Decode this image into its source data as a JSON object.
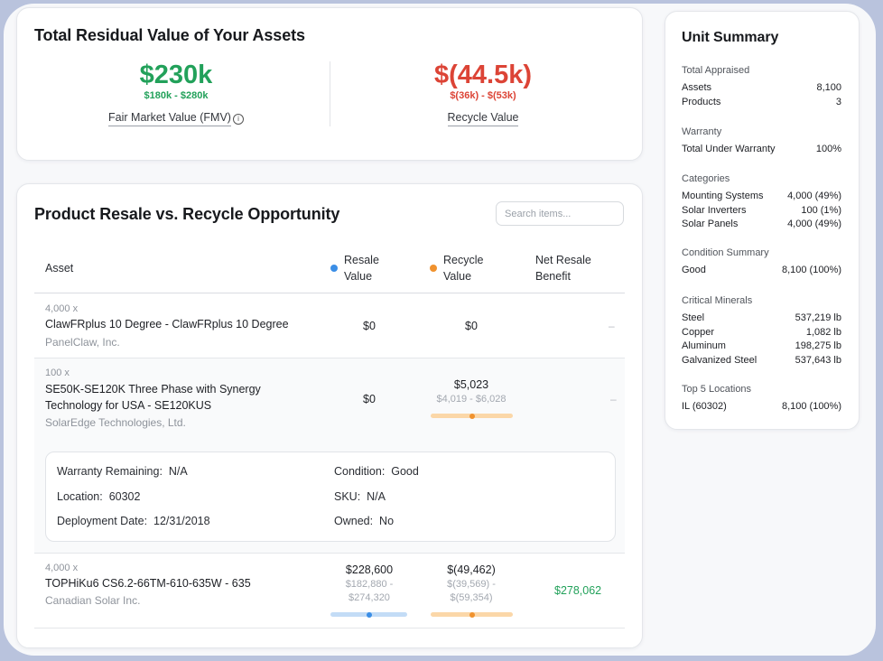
{
  "residual": {
    "title": "Total Residual Value of Your Assets",
    "fmv": {
      "value": "$230k",
      "range": "$180k - $280k",
      "label": "Fair Market Value (FMV)",
      "info_icon": "info-icon"
    },
    "recycle": {
      "value": "$(44.5k)",
      "range": "$(36k) - $(53k)",
      "label": "Recycle Value"
    }
  },
  "colors": {
    "green": "#22a15a",
    "red": "#dc4436",
    "blue": "#3b8ee6",
    "orange": "#f0922e"
  },
  "opportunity": {
    "title": "Product Resale vs. Recycle Opportunity",
    "search_placeholder": "Search items...",
    "columns": {
      "asset": "Asset",
      "resale_1": "Resale",
      "resale_2": "Value",
      "recycle_1": "Recycle",
      "recycle_2": "Value",
      "net_1": "Net Resale",
      "net_2": "Benefit"
    },
    "rows": [
      {
        "qty": "4,000 x",
        "name": "ClawFRplus 10 Degree - ClawFRplus 10 Degree",
        "manufacturer": "PanelClaw, Inc.",
        "resale": "$0",
        "recycle": "$0",
        "net": "–"
      },
      {
        "qty": "100 x",
        "name_1": "SE50K-SE120K Three Phase with Synergy",
        "name_2": "Technology for USA - SE120KUS",
        "manufacturer": "SolarEdge Technologies, Ltd.",
        "resale": "$0",
        "recycle": "$5,023",
        "recycle_range": "$4,019 - $6,028",
        "recycle_level": 0.5,
        "net": "–"
      },
      {
        "qty": "4,000 x",
        "name": "TOPHiKu6 CS6.2-66TM-610-635W - 635",
        "manufacturer": "Canadian Solar Inc.",
        "resale": "$228,600",
        "resale_range_1": "$182,880 -",
        "resale_range_2": "$274,320",
        "resale_level": 0.5,
        "recycle": "$(49,462)",
        "recycle_range_1": "$(39,569) -",
        "recycle_range_2": "$(59,354)",
        "recycle_level": 0.5,
        "net": "$278,062"
      }
    ],
    "detail": {
      "warranty_label": "Warranty Remaining:",
      "warranty": "N/A",
      "location_label": "Location:",
      "location": "60302",
      "deploy_label": "Deployment Date:",
      "deploy": "12/31/2018",
      "condition_label": "Condition:",
      "condition": "Good",
      "sku_label": "SKU:",
      "sku": "N/A",
      "owned_label": "Owned:",
      "owned": "No"
    }
  },
  "summary": {
    "title": "Unit Summary",
    "sections": [
      {
        "heading": "Total Appraised",
        "rows": [
          {
            "k": "Assets",
            "v": "8,100"
          },
          {
            "k": "Products",
            "v": "3"
          }
        ]
      },
      {
        "heading": "Warranty",
        "rows": [
          {
            "k": "Total Under Warranty",
            "v": "100%"
          }
        ]
      },
      {
        "heading": "Categories",
        "rows": [
          {
            "k": "Mounting Systems",
            "v": "4,000 (49%)"
          },
          {
            "k": "Solar Inverters",
            "v": "100 (1%)"
          },
          {
            "k": "Solar Panels",
            "v": "4,000 (49%)"
          }
        ]
      },
      {
        "heading": "Condition Summary",
        "rows": [
          {
            "k": "Good",
            "v": "8,100 (100%)"
          }
        ]
      },
      {
        "heading": "Critical Minerals",
        "rows": [
          {
            "k": "Steel",
            "v": "537,219 lb"
          },
          {
            "k": "Copper",
            "v": "1,082 lb"
          },
          {
            "k": "Aluminum",
            "v": "198,275 lb"
          },
          {
            "k": "Galvanized Steel",
            "v": "537,643 lb"
          }
        ]
      },
      {
        "heading": "Top 5 Locations",
        "rows": [
          {
            "k": "IL (60302)",
            "v": "8,100 (100%)"
          }
        ]
      }
    ]
  }
}
